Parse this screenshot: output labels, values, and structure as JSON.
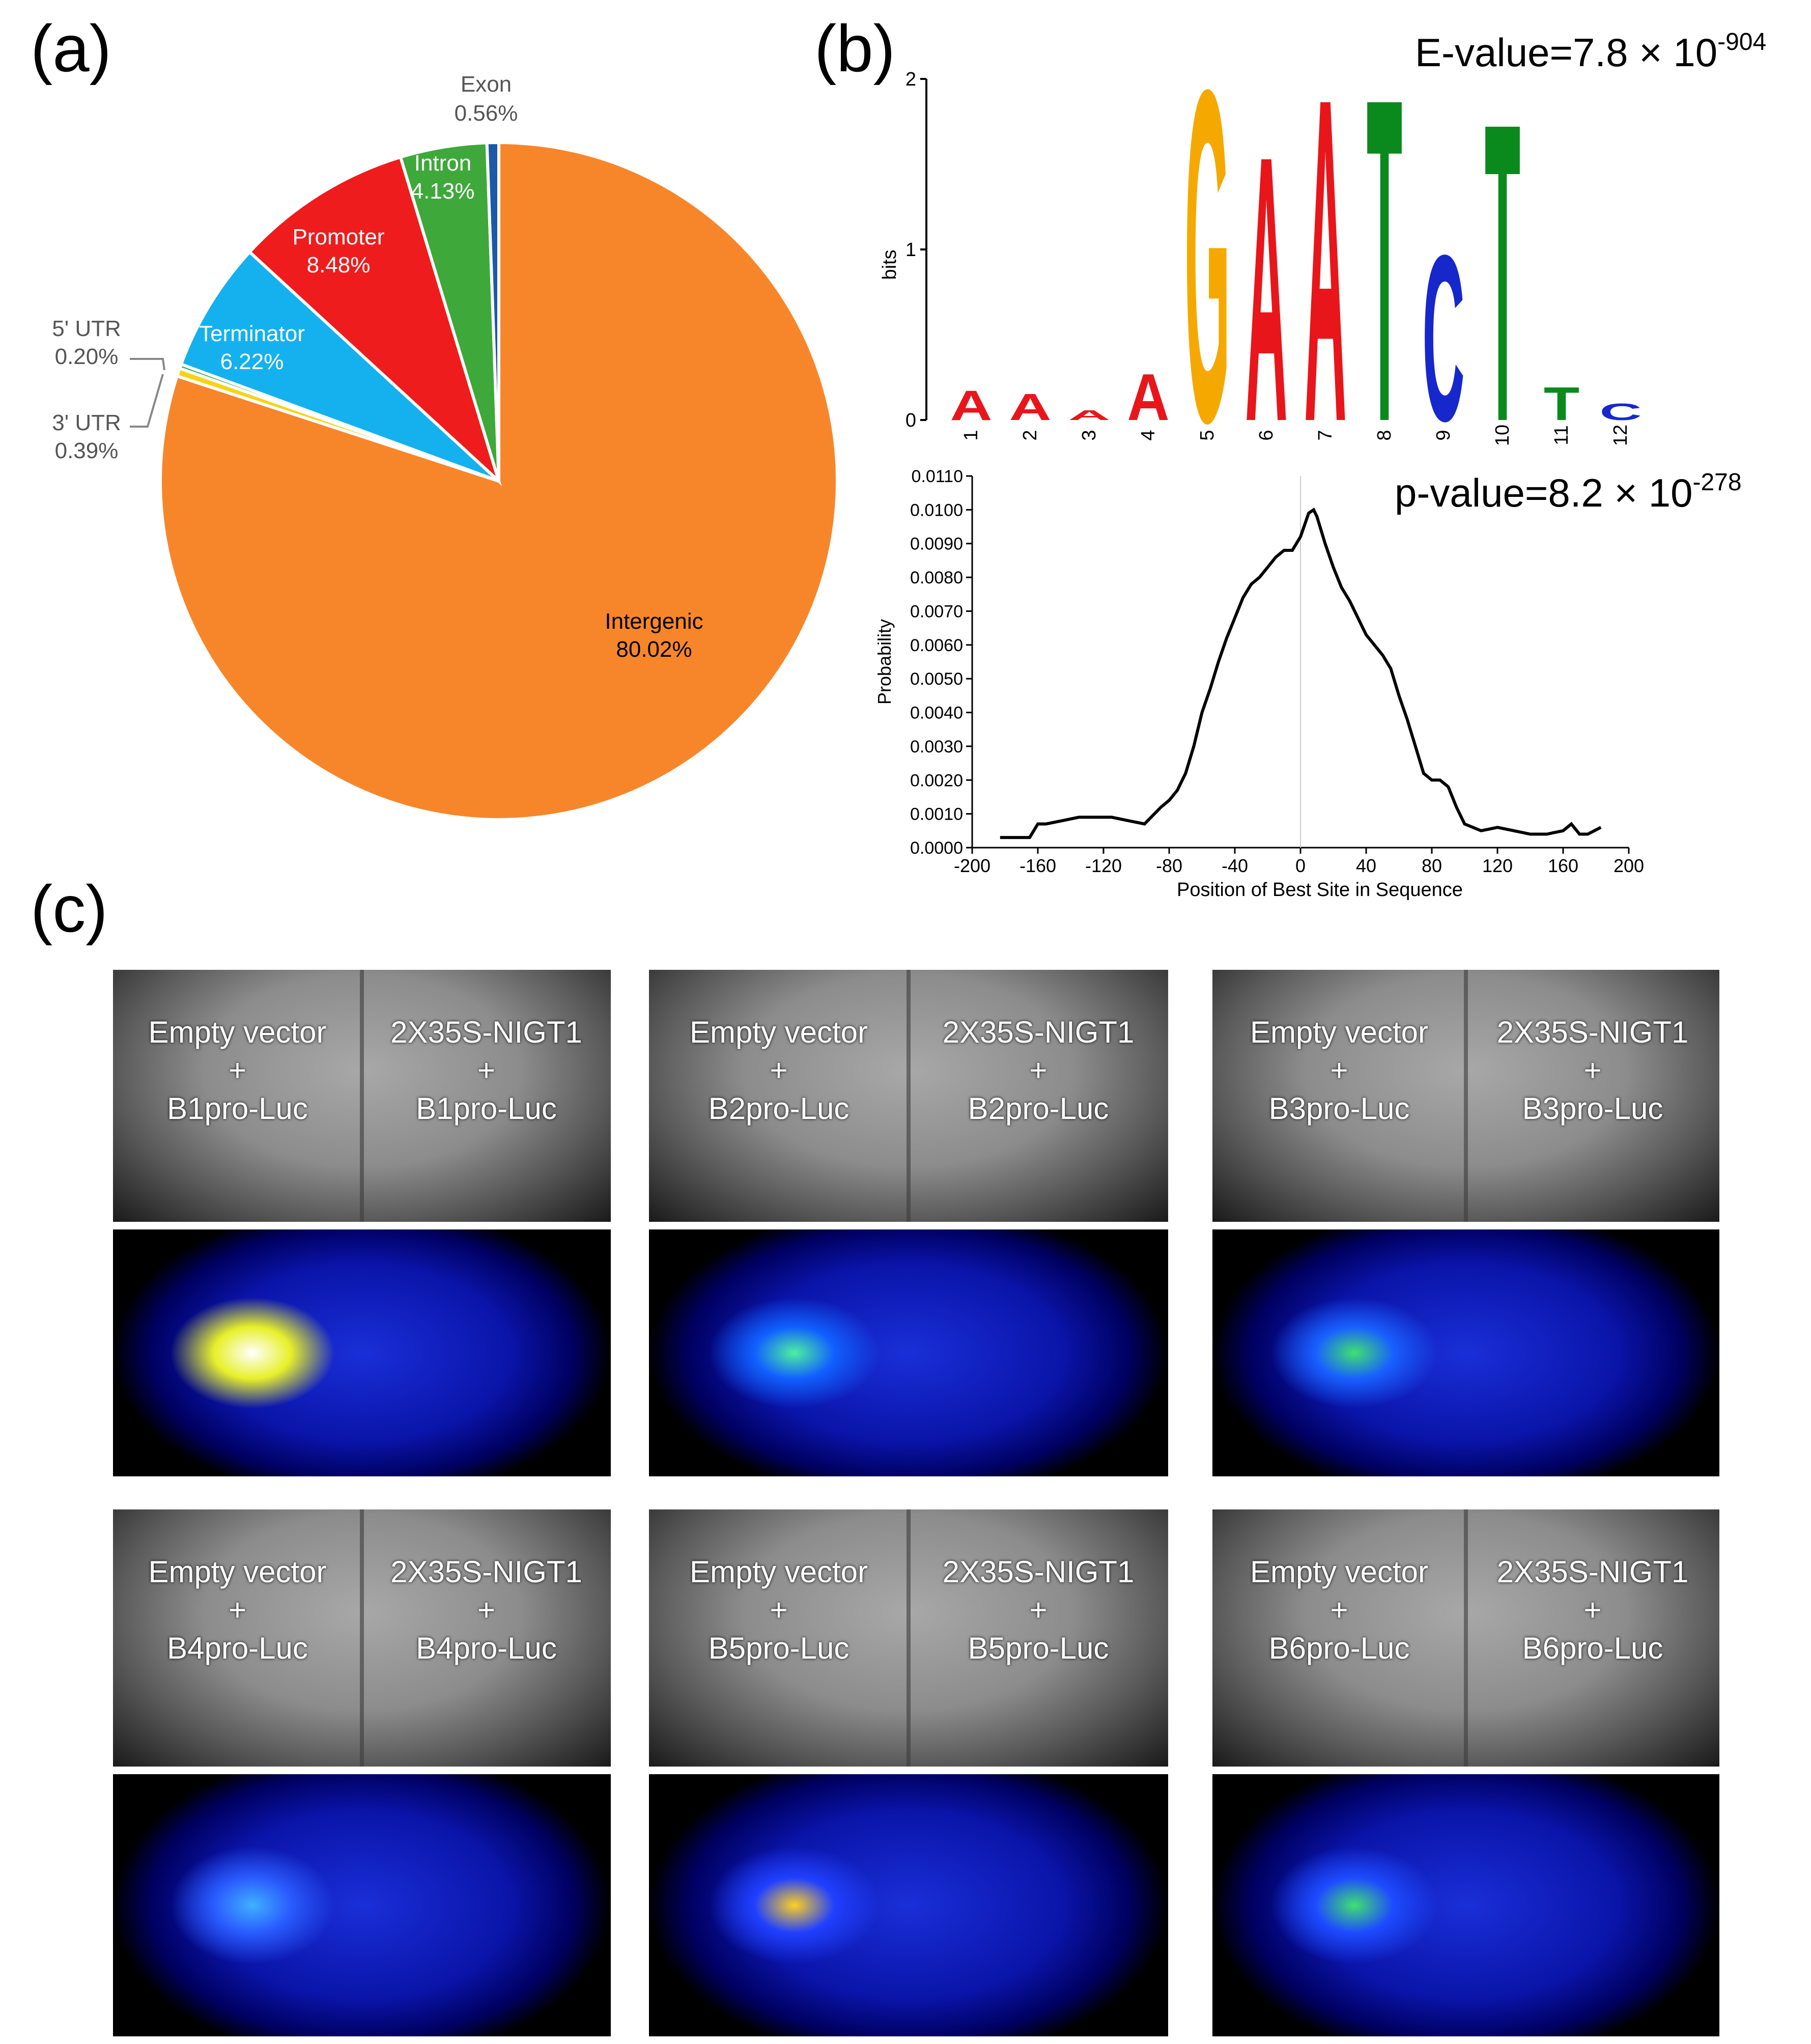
{
  "panel_labels": {
    "a": "(a)",
    "b": "(b)",
    "c": "(c)"
  },
  "chart_data": [
    {
      "type": "pie",
      "panel": "(a)",
      "slices": [
        {
          "label": "Intergenic",
          "value": 80.02,
          "value_label": "80.02%",
          "color": "#f7862b"
        },
        {
          "label": "3' UTR",
          "value": 0.39,
          "value_label": "0.39%",
          "color": "#f5d416"
        },
        {
          "label": "5' UTR",
          "value": 0.2,
          "value_label": "0.20%",
          "color": "#2ba84a"
        },
        {
          "label": "Terminator",
          "value": 6.22,
          "value_label": "6.22%",
          "color": "#14b1ee"
        },
        {
          "label": "Promoter",
          "value": 8.48,
          "value_label": "8.48%",
          "color": "#ee1c1c"
        },
        {
          "label": "Intron",
          "value": 4.13,
          "value_label": "4.13%",
          "color": "#3fa83a"
        },
        {
          "label": "Exon",
          "value": 0.56,
          "value_label": "0.56%",
          "color": "#1c5aa6"
        }
      ]
    },
    {
      "type": "sequence-logo",
      "panel": "(b)",
      "annotation_prefix": "E-value=7.8 × 10",
      "annotation_exp": "-904",
      "ylabel": "bits",
      "ylim": [
        0,
        2
      ],
      "y_ticks": [
        "0",
        "1",
        "2"
      ],
      "positions": [
        "1",
        "2",
        "3",
        "4",
        "5",
        "6",
        "7",
        "8",
        "9",
        "10",
        "11",
        "12"
      ],
      "dominant_letters": [
        {
          "pos": 1,
          "letter": "A",
          "bits": 0.18
        },
        {
          "pos": 2,
          "letter": "A",
          "bits": 0.16
        },
        {
          "pos": 3,
          "letter": "A",
          "bits": 0.06
        },
        {
          "pos": 4,
          "letter": "A",
          "bits": 0.28
        },
        {
          "pos": 5,
          "letter": "G",
          "bits": 2.0
        },
        {
          "pos": 6,
          "letter": "A",
          "bits": 1.6
        },
        {
          "pos": 7,
          "letter": "A",
          "bits": 1.95
        },
        {
          "pos": 8,
          "letter": "T",
          "bits": 1.95
        },
        {
          "pos": 9,
          "letter": "C",
          "bits": 1.0
        },
        {
          "pos": 10,
          "letter": "T",
          "bits": 1.8
        },
        {
          "pos": 11,
          "letter": "T",
          "bits": 0.2
        },
        {
          "pos": 12,
          "letter": "C",
          "bits": 0.1
        }
      ]
    },
    {
      "type": "line",
      "panel": "(b)",
      "annotation_prefix": "p-value=8.2 × 10",
      "annotation_exp": "-278",
      "xlabel": "Position of Best Site in Sequence",
      "ylabel": "Probability",
      "xlim": [
        -200,
        200
      ],
      "ylim": [
        0,
        0.011
      ],
      "x_ticks": [
        "-200",
        "-160",
        "-120",
        "-80",
        "-40",
        "0",
        "40",
        "80",
        "120",
        "160",
        "200"
      ],
      "y_ticks": [
        "0.0000",
        "0.0010",
        "0.0020",
        "0.0030",
        "0.0040",
        "0.0050",
        "0.0060",
        "0.0070",
        "0.0080",
        "0.0090",
        "0.0100",
        "0.0110"
      ],
      "x": [
        -183,
        -175,
        -165,
        -160,
        -155,
        -145,
        -135,
        -125,
        -115,
        -105,
        -95,
        -85,
        -80,
        -75,
        -70,
        -65,
        -60,
        -55,
        -50,
        -45,
        -40,
        -35,
        -30,
        -25,
        -20,
        -15,
        -10,
        -5,
        0,
        5,
        8,
        10,
        15,
        20,
        25,
        30,
        35,
        40,
        45,
        50,
        55,
        60,
        65,
        70,
        75,
        80,
        85,
        90,
        95,
        100,
        110,
        120,
        130,
        140,
        150,
        160,
        165,
        170,
        175,
        183
      ],
      "y": [
        0.0003,
        0.0003,
        0.0003,
        0.0007,
        0.0007,
        0.0008,
        0.0009,
        0.0009,
        0.0009,
        0.0008,
        0.0007,
        0.0012,
        0.0014,
        0.0017,
        0.0022,
        0.003,
        0.004,
        0.0047,
        0.0055,
        0.0062,
        0.0068,
        0.0074,
        0.0078,
        0.008,
        0.0083,
        0.0086,
        0.0088,
        0.0088,
        0.0092,
        0.0099,
        0.01,
        0.0098,
        0.009,
        0.0083,
        0.0077,
        0.0073,
        0.0068,
        0.0063,
        0.006,
        0.0057,
        0.0053,
        0.0045,
        0.0038,
        0.003,
        0.0022,
        0.002,
        0.002,
        0.0018,
        0.0012,
        0.0007,
        0.0005,
        0.0006,
        0.0005,
        0.0004,
        0.0004,
        0.0005,
        0.0007,
        0.0004,
        0.0004,
        0.0006
      ]
    }
  ],
  "luc_panels": [
    {
      "left_line1": "Empty vector",
      "plus": "+",
      "left_line3": "B1pro-Luc",
      "right_line1": "2X35S-NIGT1",
      "right_line3": "B1pro-Luc"
    },
    {
      "left_line1": "Empty vector",
      "plus": "+",
      "left_line3": "B2pro-Luc",
      "right_line1": "2X35S-NIGT1",
      "right_line3": "B2pro-Luc"
    },
    {
      "left_line1": "Empty vector",
      "plus": "+",
      "left_line3": "B3pro-Luc",
      "right_line1": "2X35S-NIGT1",
      "right_line3": "B3pro-Luc"
    },
    {
      "left_line1": "Empty vector",
      "plus": "+",
      "left_line3": "B4pro-Luc",
      "right_line1": "2X35S-NIGT1",
      "right_line3": "B4pro-Luc"
    },
    {
      "left_line1": "Empty vector",
      "plus": "+",
      "left_line3": "B5pro-Luc",
      "right_line1": "2X35S-NIGT1",
      "right_line3": "B5pro-Luc"
    },
    {
      "left_line1": "Empty vector",
      "plus": "+",
      "left_line3": "B6pro-Luc",
      "right_line1": "2X35S-NIGT1",
      "right_line3": "B6pro-Luc"
    }
  ]
}
